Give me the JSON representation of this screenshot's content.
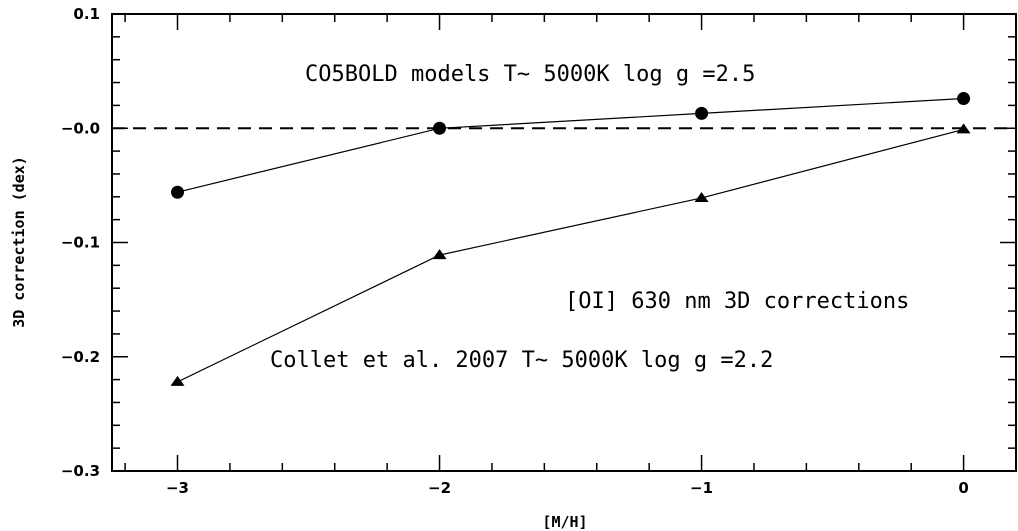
{
  "chart_data": {
    "type": "line",
    "xlabel": "[M/H]",
    "ylabel": "3D correction (dex)",
    "xlim": [
      -3.25,
      0.2
    ],
    "ylim": [
      -0.3,
      0.1
    ],
    "x_ticks": [
      -3,
      -2,
      -1,
      0
    ],
    "x_tick_labels": [
      "−3",
      "−2",
      "−1",
      "0"
    ],
    "y_ticks": [
      -0.3,
      -0.2,
      -0.1,
      0.0,
      0.1
    ],
    "y_tick_labels": [
      "−0.3",
      "−0.2",
      "−0.1",
      "−0.0",
      "0.1"
    ],
    "reference_line": {
      "y": 0.0,
      "style": "dashed"
    },
    "series": [
      {
        "label": "CO5BOLD models T~ 5000K log g =2.5",
        "marker": "circle",
        "color": "#000000",
        "points": [
          [
            -3,
            -0.056
          ],
          [
            -2,
            0.0
          ],
          [
            -1,
            0.013
          ],
          [
            0,
            0.026
          ]
        ]
      },
      {
        "label": "Collet et al. 2007 T~ 5000K log g =2.2",
        "marker": "triangle",
        "color": "#000000",
        "points": [
          [
            -3,
            -0.222
          ],
          [
            -2,
            -0.111
          ],
          [
            -1,
            -0.061
          ],
          [
            0,
            -0.001
          ]
        ]
      }
    ],
    "annotations": [
      "CO5BOLD models T~ 5000K log g =2.5",
      "[OI] 630 nm 3D corrections",
      "Collet et al. 2007 T~ 5000K log g =2.2"
    ]
  }
}
